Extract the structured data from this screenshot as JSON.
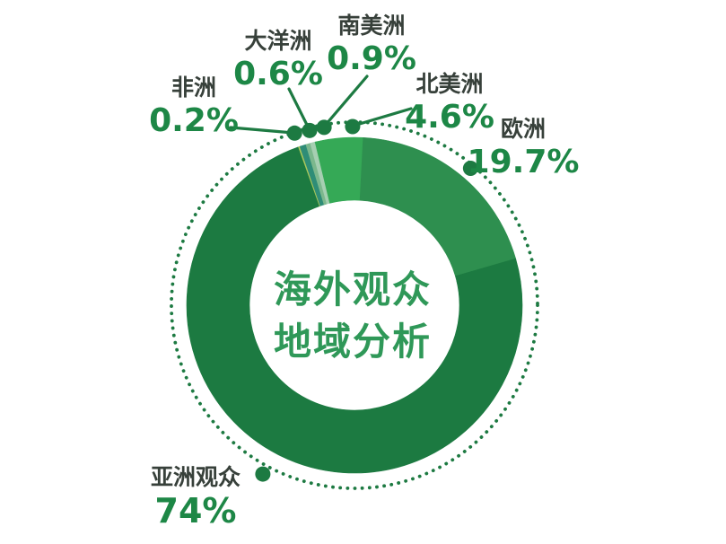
{
  "chart_data": {
    "type": "pie",
    "variant": "donut",
    "title": "海外观众地域分析",
    "center_title": [
      "海外观众",
      "地域分析"
    ],
    "unit": "%",
    "start_angle_deg_from_top": -19.7,
    "clockwise": true,
    "legend_position": "callouts-around-donut",
    "grid": false,
    "slices": [
      {
        "label": "非洲",
        "value": 0.2,
        "display": "0.2%",
        "color": "#abc75c"
      },
      {
        "label": "大洋洲",
        "value": 0.6,
        "display": "0.6%",
        "color": "#2f8d77"
      },
      {
        "label": "南美洲",
        "value": 0.9,
        "display": "0.9%",
        "color": "#7cb88d",
        "color_end": "#a6cfb2"
      },
      {
        "label": "北美洲",
        "value": 4.6,
        "display": "4.6%",
        "color": "#35a956"
      },
      {
        "label": "欧洲",
        "value": 19.7,
        "display": "19.7%",
        "color": "#2e8f4f"
      },
      {
        "label": "亚洲观众",
        "value": 74,
        "display": "74%",
        "color": "#1c7a41"
      }
    ],
    "colors": {
      "background": "#ffffff",
      "continent_label_text": "#37403a",
      "percent_text": "#1d8746",
      "center_title_text": "#2f9858",
      "callout_line_and_dots": "#1d7a42"
    }
  }
}
